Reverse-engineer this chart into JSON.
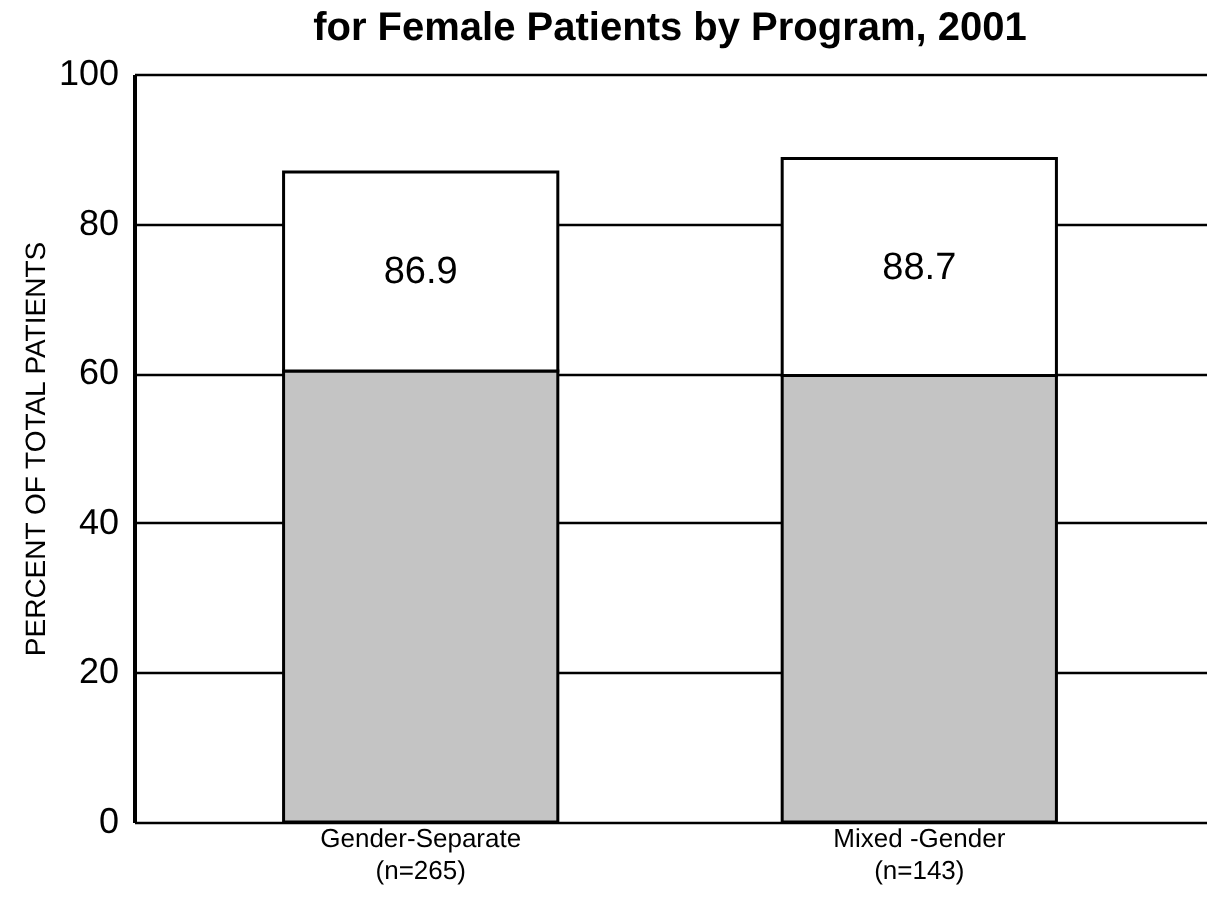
{
  "chart_data": {
    "type": "bar",
    "title": "for Female Patients by Program, 2001",
    "ylabel": "PERCENT OF TOTAL PATIENTS",
    "categories": [
      "Gender-Separate (n=265)",
      "Mixed -Gender (n=143)"
    ],
    "stacked": true,
    "series": [
      {
        "color": "#c4c4c4",
        "values": [
          60.3,
          59.7
        ]
      },
      {
        "color": "#ffffff",
        "values": [
          26.6,
          29.0
        ]
      }
    ],
    "totals": [
      "86.9",
      "88.7"
    ],
    "ylim": [
      0,
      100
    ],
    "yticks": [
      0,
      20,
      40,
      60,
      80,
      100
    ],
    "grid": "y"
  }
}
